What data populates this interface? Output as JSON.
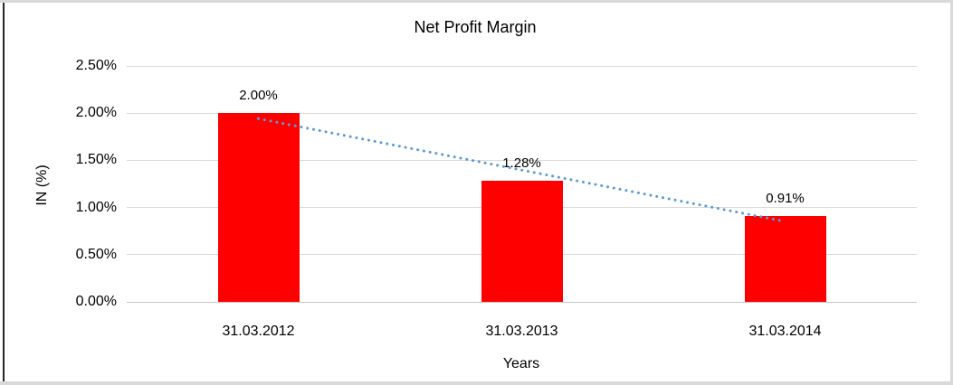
{
  "frame": {
    "edge_color": "#D9D9D9",
    "left_line_color": "#262626",
    "background": "#FFFFFF"
  },
  "chart_data": {
    "type": "bar",
    "title": "Net Profit Margin",
    "xlabel": "Years",
    "ylabel": "IN (%)",
    "categories": [
      "31.03.2012",
      "31.03.2013",
      "31.03.2014"
    ],
    "values": [
      2.0,
      1.28,
      0.91
    ],
    "data_labels": [
      "2.00%",
      "1.28%",
      "0.91%"
    ],
    "ylim": [
      0,
      2.5
    ],
    "yticks": [
      0,
      0.5,
      1.0,
      1.5,
      2.0,
      2.5
    ],
    "ytick_labels": [
      "0.00%",
      "0.50%",
      "1.00%",
      "1.50%",
      "2.00%",
      "2.50%"
    ],
    "grid": true,
    "legend": "none",
    "bar_color": "#FF0000",
    "gridline_color": "#D9D9D9",
    "axis_line_color": "#C6C6C6",
    "trendline": {
      "type": "linear",
      "style": "dotted",
      "color": "#5B9BD5"
    }
  }
}
